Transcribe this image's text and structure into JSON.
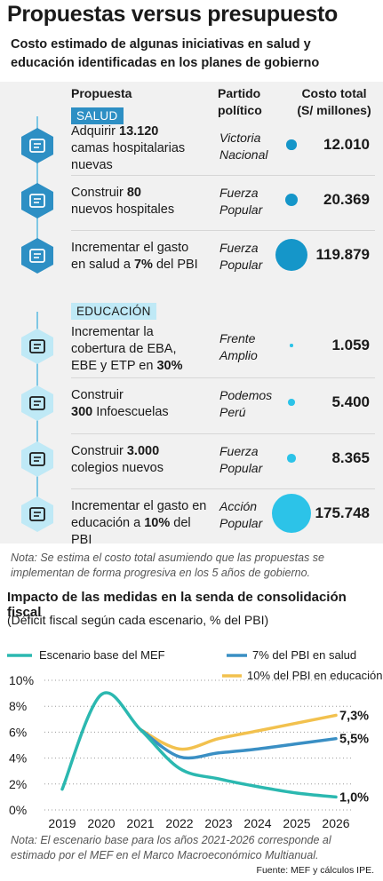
{
  "title": "Propuestas versus presupuesto",
  "subtitle": "Costo estimado de algunas iniciativas en salud y educación identificadas en los planes de gobierno",
  "table": {
    "headers": {
      "propuesta": "Propuesta",
      "partido_line1": "Partido",
      "partido_line2": "político",
      "costo_line1": "Costo total",
      "costo_line2": "(S/ millones)"
    },
    "sections": [
      {
        "name": "SALUD",
        "rows": [
          {
            "icon": "hospital-bed-icon",
            "line1_pre": "Adquirir ",
            "line1_bold": "13.120",
            "line2": "camas hospitalarias",
            "line3": "nuevas",
            "party1": "Victoria",
            "party2": "Nacional",
            "cost": "12.010",
            "value": 12010
          },
          {
            "icon": "hospital-building-icon",
            "line1_pre": "Construir ",
            "line1_bold": "80",
            "line2": "nuevos hospitales",
            "line3": "",
            "party1": "Fuerza",
            "party2": "Popular",
            "cost": "20.369",
            "value": 20369
          },
          {
            "icon": "health-document-icon",
            "line1_pre": "Incrementar el gasto",
            "line1_bold": "",
            "line2_pre": "en salud a ",
            "line2_bold": "7%",
            "line2_post": " del PBI",
            "party1": "Fuerza",
            "party2": "Popular",
            "cost": "119.879",
            "value": 119879
          }
        ]
      },
      {
        "name": "EDUCACIÓN",
        "rows": [
          {
            "icon": "gears-person-icon",
            "line1_pre": "Incrementar la",
            "line1_bold": "",
            "line2": "cobertura de EBA,",
            "line3_pre": "EBE y ETP en ",
            "line3_bold": "30%",
            "party1": "Frente",
            "party2": "Amplio",
            "cost": "1.059",
            "value": 1059
          },
          {
            "icon": "computer-student-icon",
            "line1_pre": "Construir",
            "line1_bold": "",
            "line2_bold": "300",
            "line2_post": " Infoescuelas",
            "party1": "Podemos",
            "party2": "Perú",
            "cost": "5.400",
            "value": 5400
          },
          {
            "icon": "school-building-icon",
            "line1_pre": "Construir ",
            "line1_bold": "3.000",
            "line2": "colegios nuevos",
            "party1": "Fuerza",
            "party2": "Popular",
            "cost": "8.365",
            "value": 8365
          },
          {
            "icon": "money-hand-icon",
            "line1_pre": "Incrementar el gasto en",
            "line1_bold": "",
            "line2_pre": "educación a ",
            "line2_bold": "10%",
            "line2_post": " del PBI",
            "party1": "Acción",
            "party2": "Popular",
            "cost": "175.748",
            "value": 175748
          }
        ]
      }
    ]
  },
  "note1": "Nota: Se estima el costo total asumiendo que las propuestas se implementan de forma progresiva en los 5 años de gobierno.",
  "fiscal": {
    "title": "Impacto de las medidas en la senda de consolidación fiscal",
    "subtitle": "(Déficit fiscal según cada escenario, % del PBI)"
  },
  "chart_data": {
    "type": "line",
    "x": [
      2019,
      2020,
      2021,
      2022,
      2023,
      2024,
      2025,
      2026
    ],
    "series": [
      {
        "name": "Escenario base del MEF",
        "color": "#2bb8b0",
        "x": [
          2019,
          2020,
          2021,
          2022,
          2023,
          2024,
          2025,
          2026
        ],
        "values": [
          1.6,
          8.9,
          6.2,
          3.2,
          2.4,
          1.8,
          1.3,
          1.0
        ]
      },
      {
        "name": "7% del PBI en salud",
        "color": "#3a8fc4",
        "x": [
          2021,
          2022,
          2023,
          2024,
          2025,
          2026
        ],
        "values": [
          6.2,
          4.1,
          4.4,
          4.7,
          5.1,
          5.5
        ]
      },
      {
        "name": "10% del PBI en educación",
        "color": "#f2c14e",
        "x": [
          2021,
          2022,
          2023,
          2024,
          2025,
          2026
        ],
        "values": [
          6.2,
          4.7,
          5.5,
          6.1,
          6.7,
          7.3
        ]
      }
    ],
    "end_labels": [
      "1,0%",
      "5,5%",
      "7,3%"
    ],
    "ylim": [
      0,
      10
    ],
    "yticks": [
      0,
      2,
      4,
      6,
      8,
      10
    ],
    "ytick_labels": [
      "0%",
      "2%",
      "4%",
      "6%",
      "8%",
      "10%"
    ],
    "xtick_labels": [
      "2019",
      "2020",
      "2021",
      "2022",
      "2023",
      "2024",
      "2025",
      "2026"
    ],
    "grid": "horizontal dotted",
    "legend": "top"
  },
  "note2": "Nota: El escenario base para los años 2021-2026 corresponde al estimado por el MEF en el Marco Macroeconómico Multianual.",
  "source": "Fuente: MEF y cálculos IPE."
}
